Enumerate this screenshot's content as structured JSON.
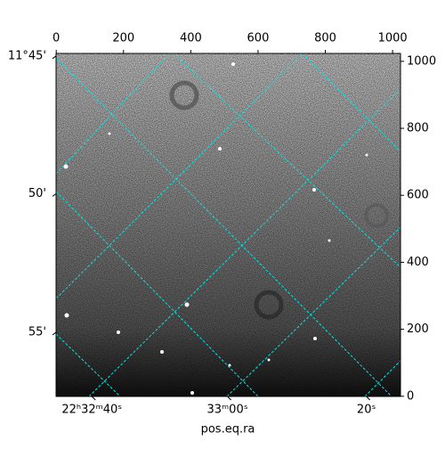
{
  "chart_data": {
    "type": "image",
    "xlabel": "pos.eq.ra",
    "xlim": [
      -0.5,
      1023.5
    ],
    "ylim": [
      -0.5,
      1023.5
    ],
    "xticks": [
      0,
      200,
      400,
      600,
      800,
      1000
    ],
    "yticks": [
      0,
      200,
      400,
      600,
      800,
      1000
    ],
    "ra_ticks": [
      {
        "value": 106,
        "label": "22ʰ32ᵐ40ˢ"
      },
      {
        "value": 509,
        "label": "33ᵐ00ˢ"
      },
      {
        "value": 922,
        "label": "20ˢ"
      }
    ],
    "dec_ticks": [
      {
        "value": 1016,
        "label": "11°45'"
      },
      {
        "value": 605,
        "label": "50'"
      },
      {
        "value": 191,
        "label": "55'"
      }
    ]
  }
}
